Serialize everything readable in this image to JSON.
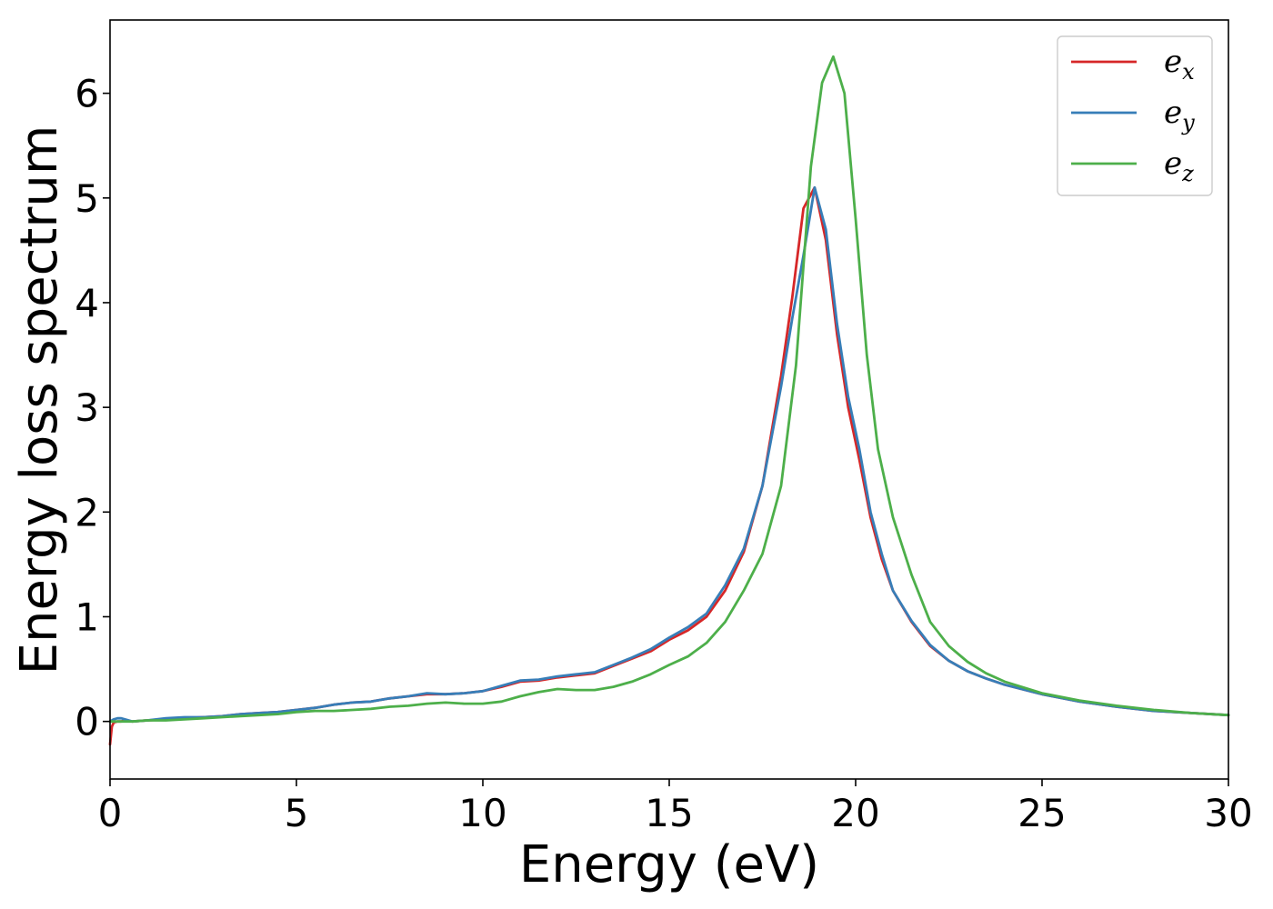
{
  "chart_data": {
    "type": "line",
    "xlabel": "Energy (eV)",
    "ylabel": "Energy loss spectrum",
    "xlim": [
      0,
      30
    ],
    "ylim": [
      -0.55,
      6.7
    ],
    "xticks": [
      0,
      5,
      10,
      15,
      20,
      25,
      30
    ],
    "yticks": [
      0,
      1,
      2,
      3,
      4,
      5,
      6
    ],
    "grid": false,
    "legend_position": "top-right",
    "series": [
      {
        "name": "e",
        "subscript": "x",
        "color": "#d62728",
        "x": [
          0,
          0.05,
          0.1,
          0.2,
          0.3,
          0.4,
          0.6,
          1,
          1.5,
          2,
          2.5,
          3,
          3.5,
          4,
          4.5,
          5,
          5.5,
          6,
          6.5,
          7,
          7.5,
          8,
          8.5,
          9,
          9.5,
          10,
          10.5,
          11,
          11.5,
          12,
          12.5,
          13,
          13.5,
          14,
          14.5,
          15,
          15.5,
          16,
          16.5,
          17,
          17.5,
          18,
          18.3,
          18.6,
          18.9,
          19.2,
          19.5,
          19.8,
          20.1,
          20.4,
          20.7,
          21,
          21.5,
          22,
          22.5,
          23,
          23.5,
          24,
          25,
          26,
          27,
          28,
          29,
          30
        ],
        "y": [
          -0.22,
          -0.05,
          -0.01,
          0.0,
          0.0,
          0.01,
          0.0,
          0.01,
          0.02,
          0.03,
          0.04,
          0.05,
          0.07,
          0.08,
          0.09,
          0.11,
          0.13,
          0.16,
          0.18,
          0.19,
          0.22,
          0.24,
          0.26,
          0.26,
          0.27,
          0.29,
          0.33,
          0.38,
          0.39,
          0.42,
          0.44,
          0.46,
          0.53,
          0.6,
          0.67,
          0.78,
          0.87,
          1.0,
          1.25,
          1.62,
          2.25,
          3.3,
          4.05,
          4.9,
          5.1,
          4.6,
          3.7,
          3.0,
          2.5,
          1.95,
          1.55,
          1.25,
          0.95,
          0.72,
          0.58,
          0.48,
          0.41,
          0.35,
          0.26,
          0.19,
          0.14,
          0.1,
          0.08,
          0.06
        ]
      },
      {
        "name": "e",
        "subscript": "y",
        "color": "#377eb8",
        "x": [
          0,
          0.1,
          0.2,
          0.3,
          0.4,
          0.6,
          1,
          1.5,
          2,
          2.5,
          3,
          3.5,
          4,
          4.5,
          5,
          5.5,
          6,
          6.5,
          7,
          7.5,
          8,
          8.5,
          9,
          9.5,
          10,
          10.5,
          11,
          11.5,
          12,
          12.5,
          13,
          13.5,
          14,
          14.5,
          15,
          15.5,
          16,
          16.5,
          17,
          17.5,
          18,
          18.3,
          18.6,
          18.9,
          19.2,
          19.5,
          19.8,
          20.1,
          20.4,
          20.7,
          21,
          21.5,
          22,
          22.5,
          23,
          23.5,
          24,
          25,
          26,
          27,
          28,
          29,
          30
        ],
        "y": [
          0.0,
          0.02,
          0.03,
          0.03,
          0.02,
          0.0,
          0.01,
          0.03,
          0.04,
          0.04,
          0.05,
          0.07,
          0.08,
          0.09,
          0.11,
          0.13,
          0.16,
          0.18,
          0.19,
          0.22,
          0.24,
          0.27,
          0.26,
          0.27,
          0.29,
          0.34,
          0.39,
          0.4,
          0.43,
          0.45,
          0.47,
          0.54,
          0.61,
          0.69,
          0.8,
          0.9,
          1.03,
          1.3,
          1.65,
          2.25,
          3.2,
          3.85,
          4.45,
          5.1,
          4.7,
          3.8,
          3.1,
          2.6,
          2.0,
          1.6,
          1.25,
          0.96,
          0.73,
          0.58,
          0.48,
          0.41,
          0.35,
          0.26,
          0.19,
          0.14,
          0.1,
          0.08,
          0.06
        ]
      },
      {
        "name": "e",
        "subscript": "z",
        "color": "#4daf4a",
        "x": [
          0,
          0.3,
          0.6,
          1,
          1.5,
          2,
          2.5,
          3,
          3.5,
          4,
          4.5,
          5,
          5.5,
          6,
          6.5,
          7,
          7.5,
          8,
          8.5,
          9,
          9.5,
          10,
          10.5,
          11,
          11.5,
          12,
          12.5,
          13,
          13.5,
          14,
          14.5,
          15,
          15.5,
          16,
          16.5,
          17,
          17.5,
          18,
          18.4,
          18.8,
          19.1,
          19.4,
          19.7,
          20.0,
          20.3,
          20.6,
          21.0,
          21.5,
          22.0,
          22.5,
          23,
          23.5,
          24,
          25,
          26,
          27,
          28,
          29,
          30
        ],
        "y": [
          0.0,
          0.0,
          0.0,
          0.01,
          0.01,
          0.02,
          0.03,
          0.04,
          0.05,
          0.06,
          0.07,
          0.09,
          0.1,
          0.1,
          0.11,
          0.12,
          0.14,
          0.15,
          0.17,
          0.18,
          0.17,
          0.17,
          0.19,
          0.24,
          0.28,
          0.31,
          0.3,
          0.3,
          0.33,
          0.38,
          0.45,
          0.54,
          0.62,
          0.75,
          0.95,
          1.25,
          1.6,
          2.25,
          3.4,
          5.3,
          6.1,
          6.35,
          6.0,
          4.8,
          3.5,
          2.6,
          1.95,
          1.4,
          0.95,
          0.72,
          0.57,
          0.46,
          0.38,
          0.27,
          0.2,
          0.15,
          0.11,
          0.08,
          0.06
        ]
      }
    ]
  }
}
